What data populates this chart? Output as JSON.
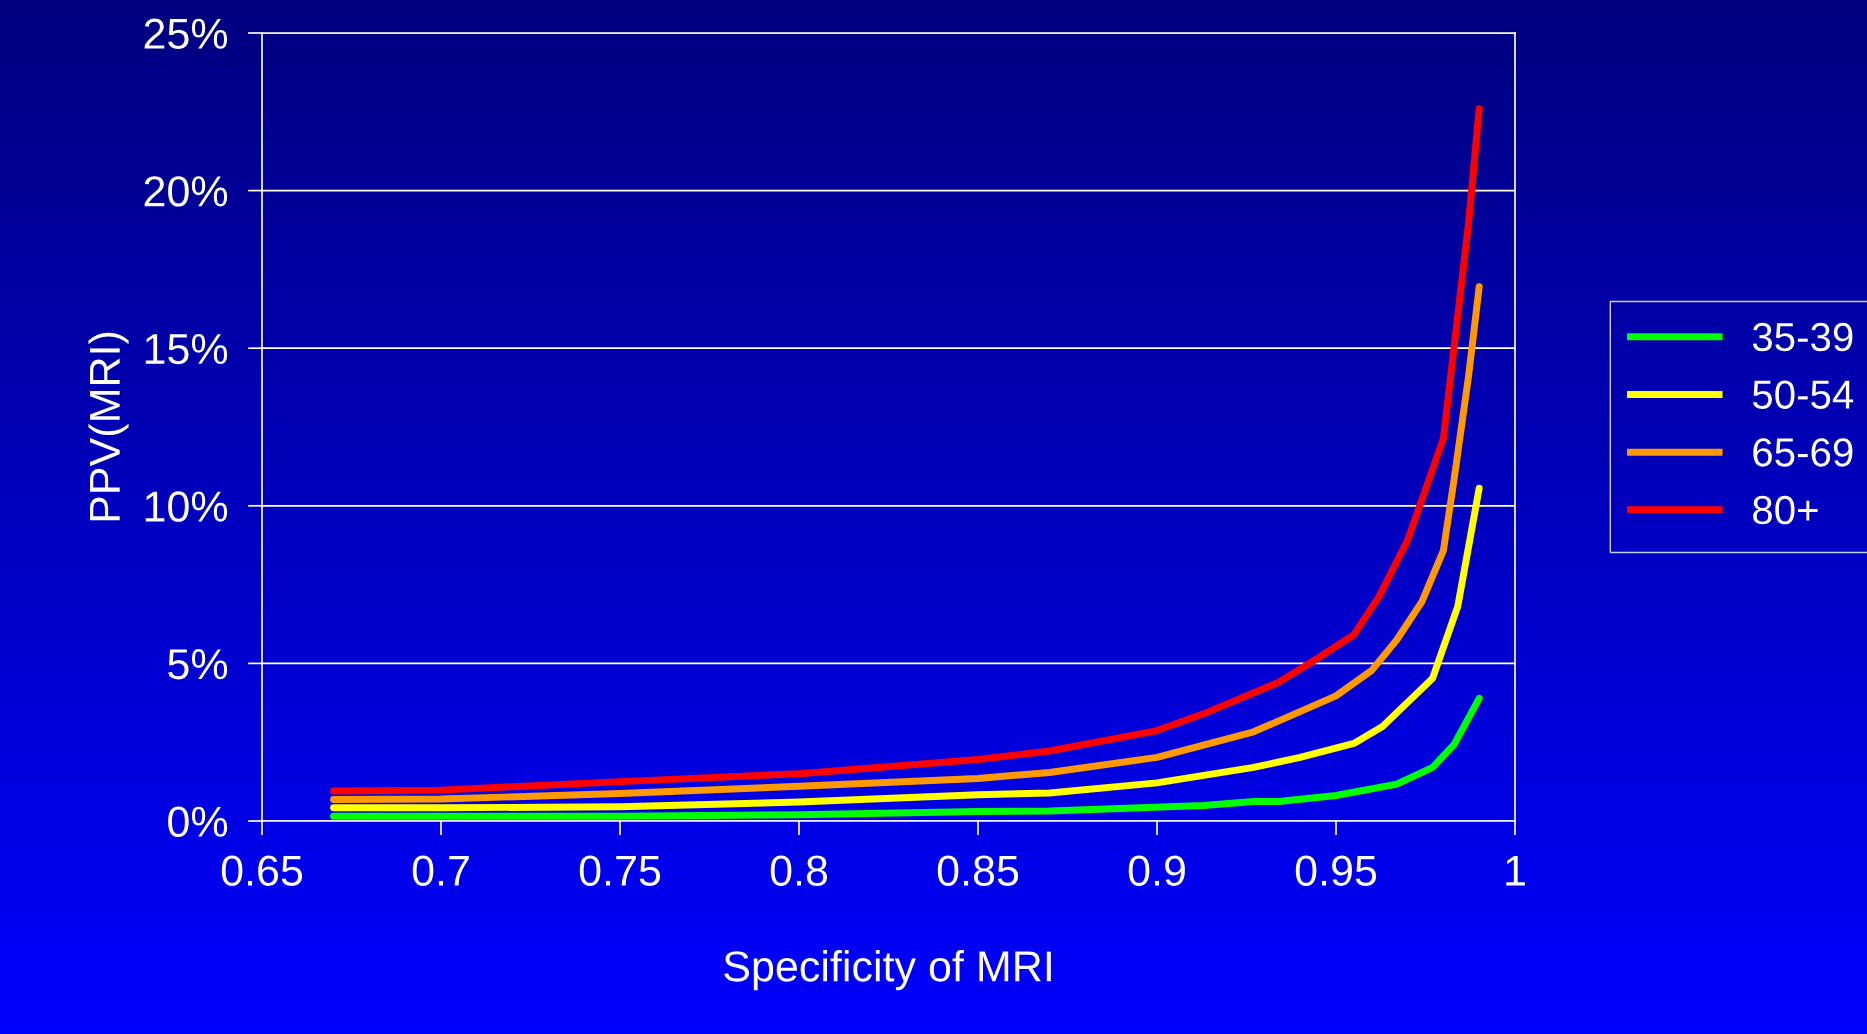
{
  "chart_data": {
    "type": "line",
    "xlabel": "Specificity of MRI",
    "ylabel": "PPV(MRI)",
    "xlim": [
      0.65,
      1
    ],
    "xticks": [
      0.65,
      0.7,
      0.75,
      0.8,
      0.85,
      0.9,
      0.95,
      1
    ],
    "ylim": [
      0,
      25
    ],
    "yticks": [
      {
        "value": 0,
        "label": "0%"
      },
      {
        "value": 5,
        "label": "5%"
      },
      {
        "value": 10,
        "label": "10%"
      },
      {
        "value": 15,
        "label": "15%"
      },
      {
        "value": 20,
        "label": "20%"
      },
      {
        "value": 25,
        "label": "25%"
      }
    ],
    "grid": "y",
    "legend": "right",
    "marker": "none",
    "line_style": "solid",
    "series": [
      {
        "name": "35-39",
        "color": "#00ff00",
        "x": [
          0.67,
          0.7,
          0.75,
          0.8,
          0.85,
          0.87,
          0.913,
          0.927,
          0.934,
          0.95,
          0.967,
          0.977,
          0.983,
          0.99
        ],
        "values": [
          0.15,
          0.15,
          0.15,
          0.2,
          0.3,
          0.32,
          0.49,
          0.62,
          0.62,
          0.81,
          1.17,
          1.7,
          2.43,
          3.89
        ]
      },
      {
        "name": "50-54",
        "color": "#ffff00",
        "x": [
          0.67,
          0.7,
          0.75,
          0.8,
          0.85,
          0.87,
          0.9,
          0.927,
          0.94,
          0.955,
          0.963,
          0.977,
          0.98,
          0.984,
          0.99
        ],
        "values": [
          0.42,
          0.42,
          0.45,
          0.6,
          0.83,
          0.89,
          1.21,
          1.7,
          2.02,
          2.46,
          3.0,
          4.53,
          5.51,
          6.8,
          10.56
        ]
      },
      {
        "name": "65-69",
        "color": "#ff9900",
        "x": [
          0.67,
          0.7,
          0.75,
          0.8,
          0.85,
          0.87,
          0.9,
          0.927,
          0.95,
          0.96,
          0.967,
          0.974,
          0.98,
          0.983,
          0.987,
          0.99
        ],
        "values": [
          0.68,
          0.7,
          0.87,
          1.1,
          1.35,
          1.54,
          2.02,
          2.83,
          3.97,
          4.78,
          5.75,
          6.96,
          8.58,
          10.85,
          14.09,
          16.95
        ]
      },
      {
        "name": "80+",
        "color": "#ff0000",
        "x": [
          0.67,
          0.7,
          0.75,
          0.8,
          0.85,
          0.87,
          0.9,
          0.913,
          0.934,
          0.944,
          0.955,
          0.962,
          0.97,
          0.975,
          0.98,
          0.983,
          0.987,
          0.99
        ],
        "values": [
          0.95,
          0.98,
          1.25,
          1.5,
          1.95,
          2.22,
          2.87,
          3.4,
          4.4,
          5.1,
          5.91,
          7.12,
          8.91,
          10.52,
          12.14,
          15.06,
          18.94,
          22.6
        ]
      }
    ]
  }
}
